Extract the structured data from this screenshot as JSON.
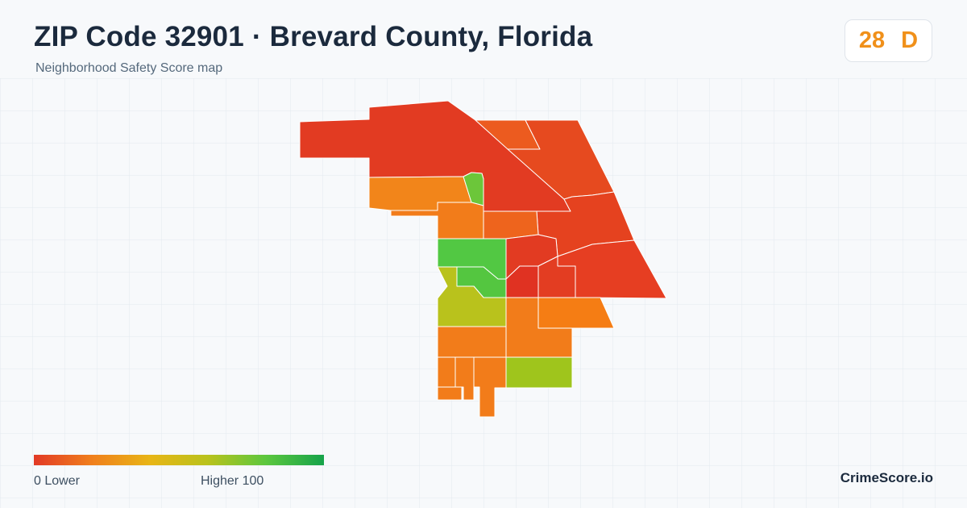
{
  "header": {
    "title": "ZIP Code 32901 · Brevard County, Florida",
    "subtitle": "Neighborhood Safety Score map"
  },
  "score_badge": {
    "score": "28",
    "grade": "D",
    "color": "#f0901a"
  },
  "legend": {
    "min_label": "0  Lower",
    "max_label": "Higher  100",
    "colors": [
      "#e23a26",
      "#f07f1c",
      "#e8b516",
      "#b9c21c",
      "#5cc73e",
      "#16a34a"
    ]
  },
  "brand": "CrimeScore.io",
  "map": {
    "style": {
      "background": "#f7f9fb",
      "grid_color": "#e3e9ef",
      "border_color": "#ffffff"
    },
    "regions": [
      {
        "id": "nw-large",
        "color": "#e23b22"
      },
      {
        "id": "north-center",
        "color": "#ec5b1f"
      },
      {
        "id": "northeast-upper",
        "color": "#e64a1f"
      },
      {
        "id": "east-middle",
        "color": "#e5421f"
      },
      {
        "id": "southeast",
        "color": "#e63e22"
      },
      {
        "id": "west-orange",
        "color": "#f2851a"
      },
      {
        "id": "green-sliver",
        "color": "#6cc63a"
      },
      {
        "id": "center-orange-west",
        "color": "#f27c1a"
      },
      {
        "id": "center-orange-east",
        "color": "#ee641d"
      },
      {
        "id": "green-block",
        "color": "#52c843"
      },
      {
        "id": "red-center",
        "color": "#e23b22"
      },
      {
        "id": "red-small-east",
        "color": "#e33d22"
      },
      {
        "id": "dark-red-center",
        "color": "#e03222"
      },
      {
        "id": "red-square",
        "color": "#e23b22"
      },
      {
        "id": "green-l-shape",
        "color": "#54c640"
      },
      {
        "id": "yellow-green",
        "color": "#b9c21c"
      },
      {
        "id": "orange-east",
        "color": "#f57d14"
      },
      {
        "id": "orange-center-south",
        "color": "#f27c1a"
      },
      {
        "id": "orange-west-south",
        "color": "#f27c1a"
      },
      {
        "id": "yellow-green-south",
        "color": "#9fc51c"
      },
      {
        "id": "strip-1",
        "color": "#f27c1a"
      },
      {
        "id": "strip-2",
        "color": "#f27c1a"
      },
      {
        "id": "strip-3",
        "color": "#f27c1a"
      },
      {
        "id": "strip-4",
        "color": "#f27c1a"
      }
    ]
  }
}
